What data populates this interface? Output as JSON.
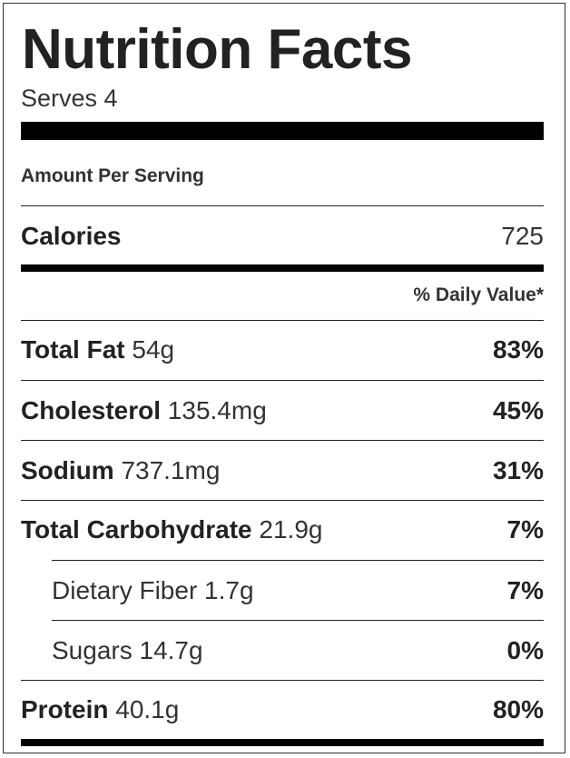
{
  "label": {
    "title": "Nutrition Facts",
    "serves": "Serves 4",
    "amount_per_serving": "Amount Per Serving",
    "calories": {
      "name": "Calories",
      "value": "725"
    },
    "daily_value_header": "% Daily Value*",
    "nutrients": [
      {
        "name": "Total Fat",
        "amount": " 54g",
        "dv": "83%",
        "indent": false
      },
      {
        "name": "Cholesterol",
        "amount": " 135.4mg",
        "dv": "45%",
        "indent": false
      },
      {
        "name": "Sodium",
        "amount": " 737.1mg",
        "dv": "31%",
        "indent": false
      },
      {
        "name": "Total Carbohydrate",
        "amount": " 21.9g",
        "dv": "7%",
        "indent": false
      },
      {
        "name": "Dietary Fiber",
        "amount": " 1.7g",
        "dv": "7%",
        "indent": true
      },
      {
        "name": "Sugars",
        "amount": " 14.7g",
        "dv": "0%",
        "indent": true
      },
      {
        "name": "Protein",
        "amount": " 40.1g",
        "dv": "80%",
        "indent": false
      }
    ]
  }
}
